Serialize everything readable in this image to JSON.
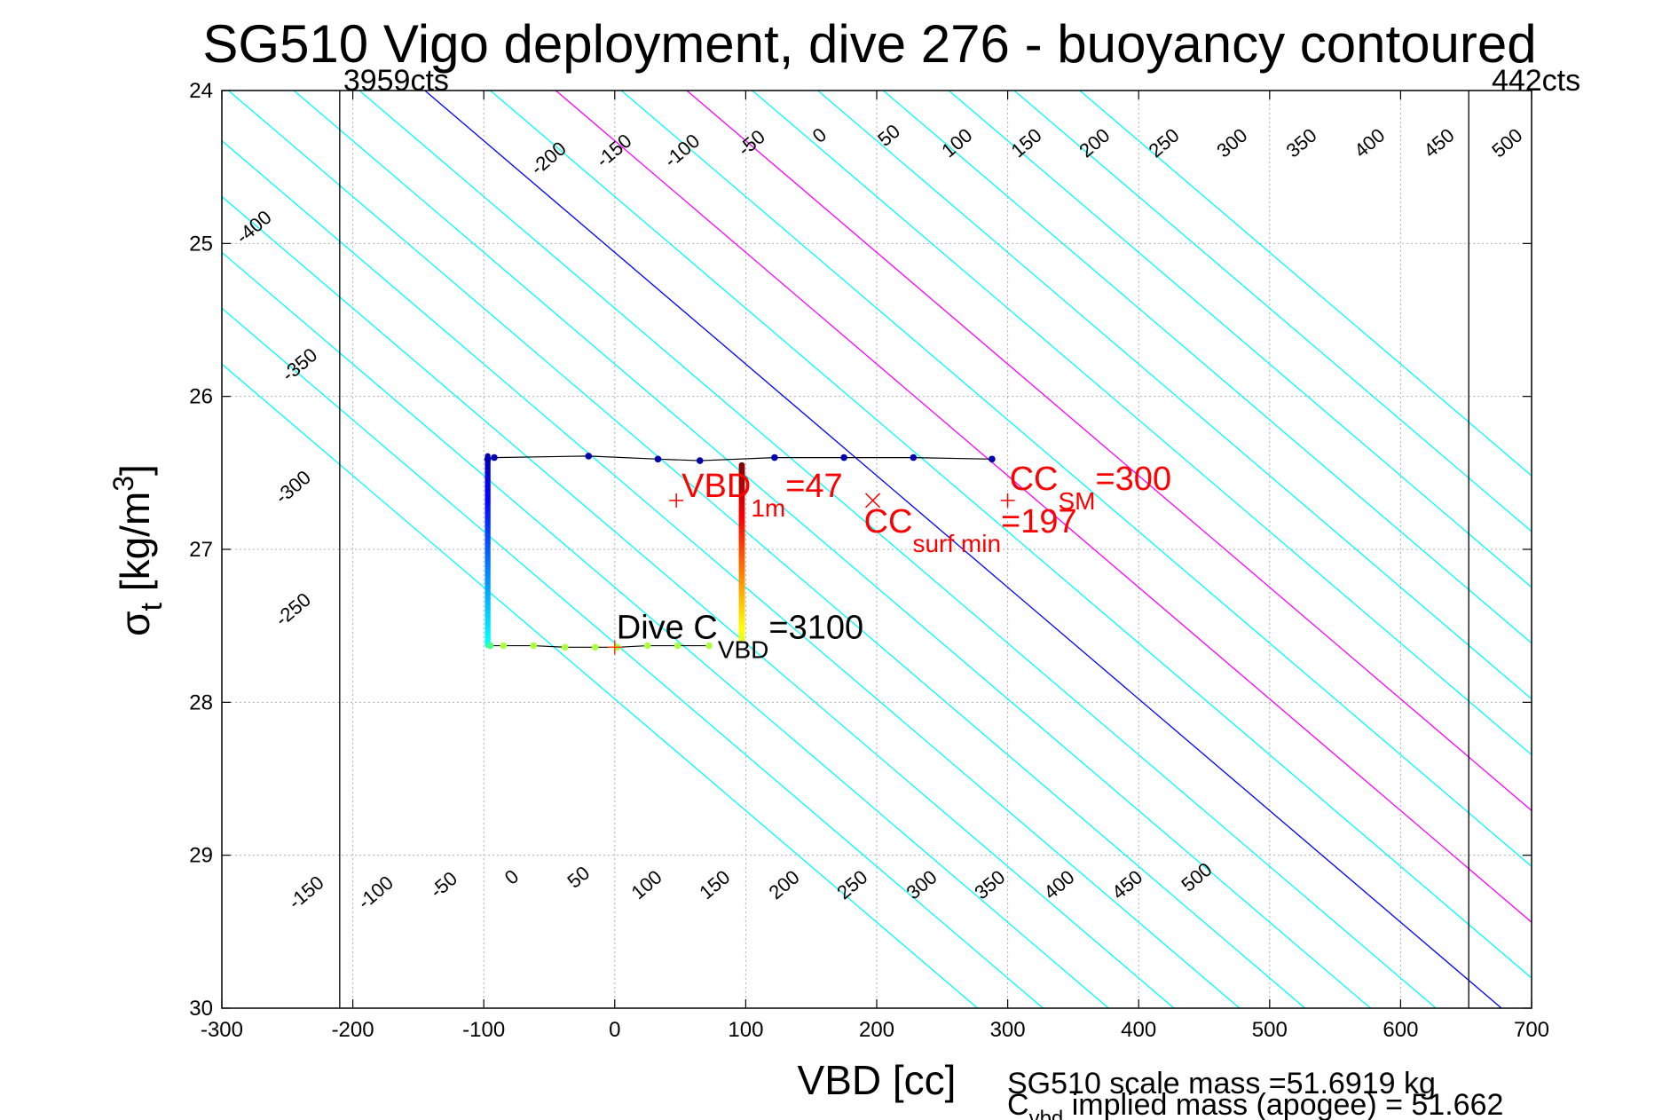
{
  "chart_data": {
    "type": "scatter",
    "title": "SG510 Vigo deployment, dive 276 - buoyancy contoured",
    "xlabel": "VBD [cc]",
    "ylabel_main": "σ",
    "ylabel_sub": "t",
    "ylabel_unit": " [kg/m",
    "ylabel_sup": "3",
    "ylabel_close": "]",
    "xlim": [
      -300,
      700
    ],
    "ylim": [
      24,
      30
    ],
    "y_reversed": true,
    "grid": true,
    "xticks": [
      -300,
      -200,
      -100,
      0,
      100,
      200,
      300,
      400,
      500,
      600,
      700
    ],
    "yticks": [
      24,
      25,
      26,
      27,
      28,
      29,
      30
    ],
    "contours": {
      "slope_vbd_per_sigma": 137,
      "levels": [
        -400,
        -350,
        -300,
        -250,
        -200,
        -150,
        -100,
        -50,
        0,
        50,
        100,
        150,
        200,
        250,
        300,
        350,
        400,
        450,
        500
      ],
      "x_at_sigma24": [
        -545,
        -495,
        -445,
        -395,
        -345,
        -295,
        -245,
        -195,
        -145,
        -95,
        -45,
        5,
        55,
        105,
        155,
        205,
        255,
        305,
        355
      ],
      "highlight": {
        "0": "#0000ff",
        "100": "#ff00ff",
        "200": "#ff00ff"
      },
      "default_color": "#00ffff",
      "top_labels": [
        {
          "level": "-400",
          "x": -275,
          "y": 24.9
        },
        {
          "level": "-350",
          "x": -240,
          "y": 25.8
        },
        {
          "level": "-300",
          "x": -245,
          "y": 26.6
        },
        {
          "level": "-250",
          "x": -245,
          "y": 27.4
        },
        {
          "level": "-200",
          "x": -50,
          "y": 24.45
        },
        {
          "level": "-150",
          "x": 0,
          "y": 24.4
        },
        {
          "level": "-100",
          "x": 52,
          "y": 24.4
        },
        {
          "level": "-50",
          "x": 105,
          "y": 24.35
        },
        {
          "level": "0",
          "x": 157,
          "y": 24.3
        },
        {
          "level": "50",
          "x": 210,
          "y": 24.3
        },
        {
          "level": "100",
          "x": 262,
          "y": 24.35
        },
        {
          "level": "150",
          "x": 315,
          "y": 24.35
        },
        {
          "level": "200",
          "x": 367,
          "y": 24.35
        },
        {
          "level": "250",
          "x": 420,
          "y": 24.35
        },
        {
          "level": "300",
          "x": 472,
          "y": 24.35
        },
        {
          "level": "350",
          "x": 525,
          "y": 24.35
        },
        {
          "level": "400",
          "x": 577,
          "y": 24.35
        },
        {
          "level": "450",
          "x": 630,
          "y": 24.35
        },
        {
          "level": "500",
          "x": 682,
          "y": 24.35
        }
      ],
      "bottom_labels": [
        {
          "level": "-150",
          "x": -235,
          "y": 29.25
        },
        {
          "level": "-100",
          "x": -182,
          "y": 29.25
        },
        {
          "level": "-50",
          "x": -130,
          "y": 29.2
        },
        {
          "level": "0",
          "x": -78,
          "y": 29.15
        },
        {
          "level": "50",
          "x": -27,
          "y": 29.15
        },
        {
          "level": "100",
          "x": 25,
          "y": 29.2
        },
        {
          "level": "150",
          "x": 77,
          "y": 29.2
        },
        {
          "level": "200",
          "x": 130,
          "y": 29.2
        },
        {
          "level": "250",
          "x": 182,
          "y": 29.2
        },
        {
          "level": "300",
          "x": 235,
          "y": 29.2
        },
        {
          "level": "350",
          "x": 287,
          "y": 29.2
        },
        {
          "level": "400",
          "x": 340,
          "y": 29.2
        },
        {
          "level": "450",
          "x": 392,
          "y": 29.2
        },
        {
          "level": "500",
          "x": 445,
          "y": 29.15
        }
      ]
    },
    "vertical_lines": [
      {
        "x": -210,
        "label": "3959cts"
      },
      {
        "x": 652,
        "label": "442cts"
      }
    ],
    "track": {
      "top_sigma": 26.39,
      "bottom_sigma": 27.63,
      "x_left": -97,
      "x_right": 97,
      "top_points": [
        [
          -97,
          26.41
        ],
        [
          -92,
          26.4
        ],
        [
          -20,
          26.39
        ],
        [
          33,
          26.41
        ],
        [
          65,
          26.42
        ],
        [
          122,
          26.4
        ],
        [
          175,
          26.4
        ],
        [
          228,
          26.4
        ],
        [
          288,
          26.41
        ]
      ],
      "bottom_points": [
        [
          -95,
          27.63
        ],
        [
          -85,
          27.63
        ],
        [
          -62,
          27.63
        ],
        [
          -38,
          27.64
        ],
        [
          -15,
          27.64
        ],
        [
          2,
          27.64
        ],
        [
          25,
          27.63
        ],
        [
          48,
          27.63
        ],
        [
          72,
          27.63
        ]
      ]
    },
    "markers": [
      {
        "label": "VBD_1m",
        "x": 47,
        "y": 26.68,
        "symbol": "+",
        "color": "#ff0000"
      },
      {
        "label": "CC_surf_min",
        "x": 197,
        "y": 26.68,
        "symbol": "x",
        "color": "#ff0000"
      },
      {
        "label": "CC_SM",
        "x": 300,
        "y": 26.68,
        "symbol": "+",
        "color": "#ff0000"
      },
      {
        "label": "Dive C_VBD",
        "x": 0,
        "y": 27.64,
        "symbol": "+",
        "color": "#ff4000"
      }
    ],
    "annotations": {
      "vbd1m_main": "VBD",
      "vbd1m_sub": "1m",
      "vbd1m_val": "=47",
      "ccsm_main": "CC",
      "ccsm_sub": "SM",
      "ccsm_val": "=300",
      "ccsurf_main": "CC",
      "ccsurf_sub": "surf min",
      "ccsurf_val": "=197",
      "dive_main": "Dive C",
      "dive_sub": "VBD",
      "dive_val": "=3100"
    },
    "footer": {
      "line1": "SG510 scale mass =51.6919 kg",
      "line2_main": "C",
      "line2_sub": "vbd",
      "line2_rest": " implied mass (apogee) = 51.662"
    }
  }
}
